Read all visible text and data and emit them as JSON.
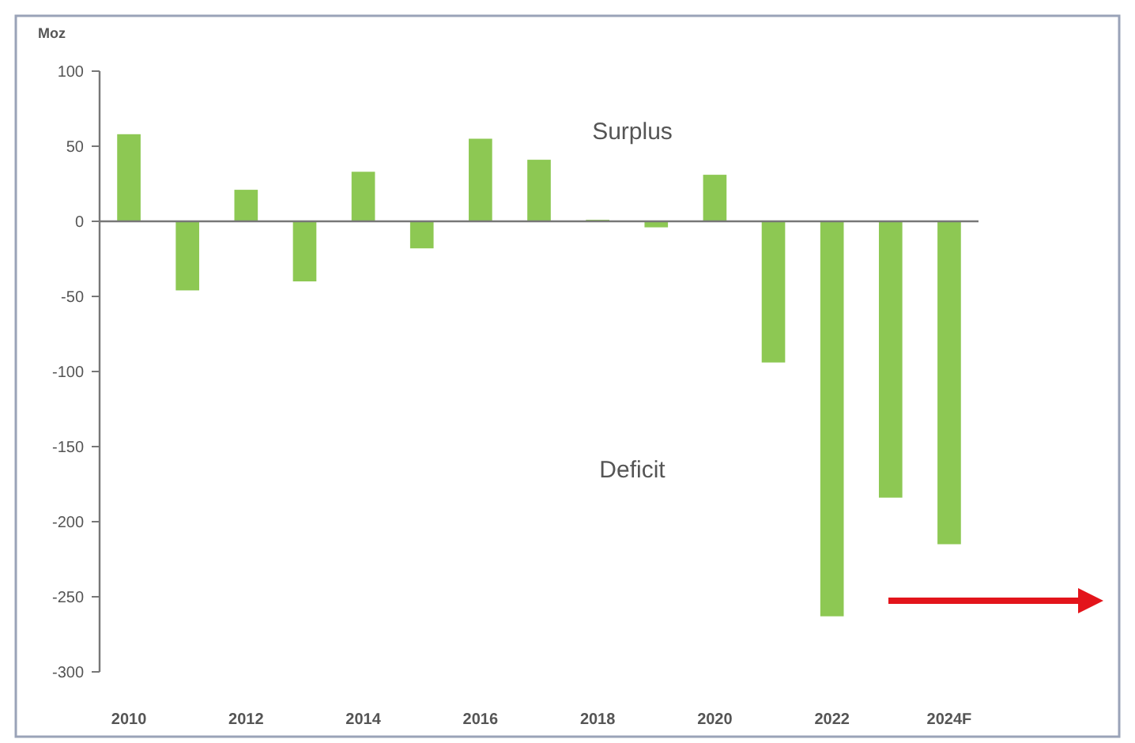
{
  "chart_data": {
    "type": "bar",
    "ylabel": "Moz",
    "categories": [
      "2010",
      null,
      "2012",
      null,
      "2014",
      null,
      "2016",
      null,
      "2018",
      null,
      "2020",
      null,
      "2022",
      null,
      "2024F"
    ],
    "values": [
      58,
      -46,
      21,
      -40,
      33,
      -18,
      55,
      41,
      1,
      -4,
      31,
      -94,
      -263,
      -184,
      -215
    ],
    "color": "#8dc853",
    "ylim": [
      -300,
      100
    ],
    "yticks": [
      -300,
      -250,
      -200,
      -150,
      -100,
      -50,
      0,
      50,
      100
    ],
    "annotations": [
      "Surplus",
      "Deficit"
    ]
  }
}
